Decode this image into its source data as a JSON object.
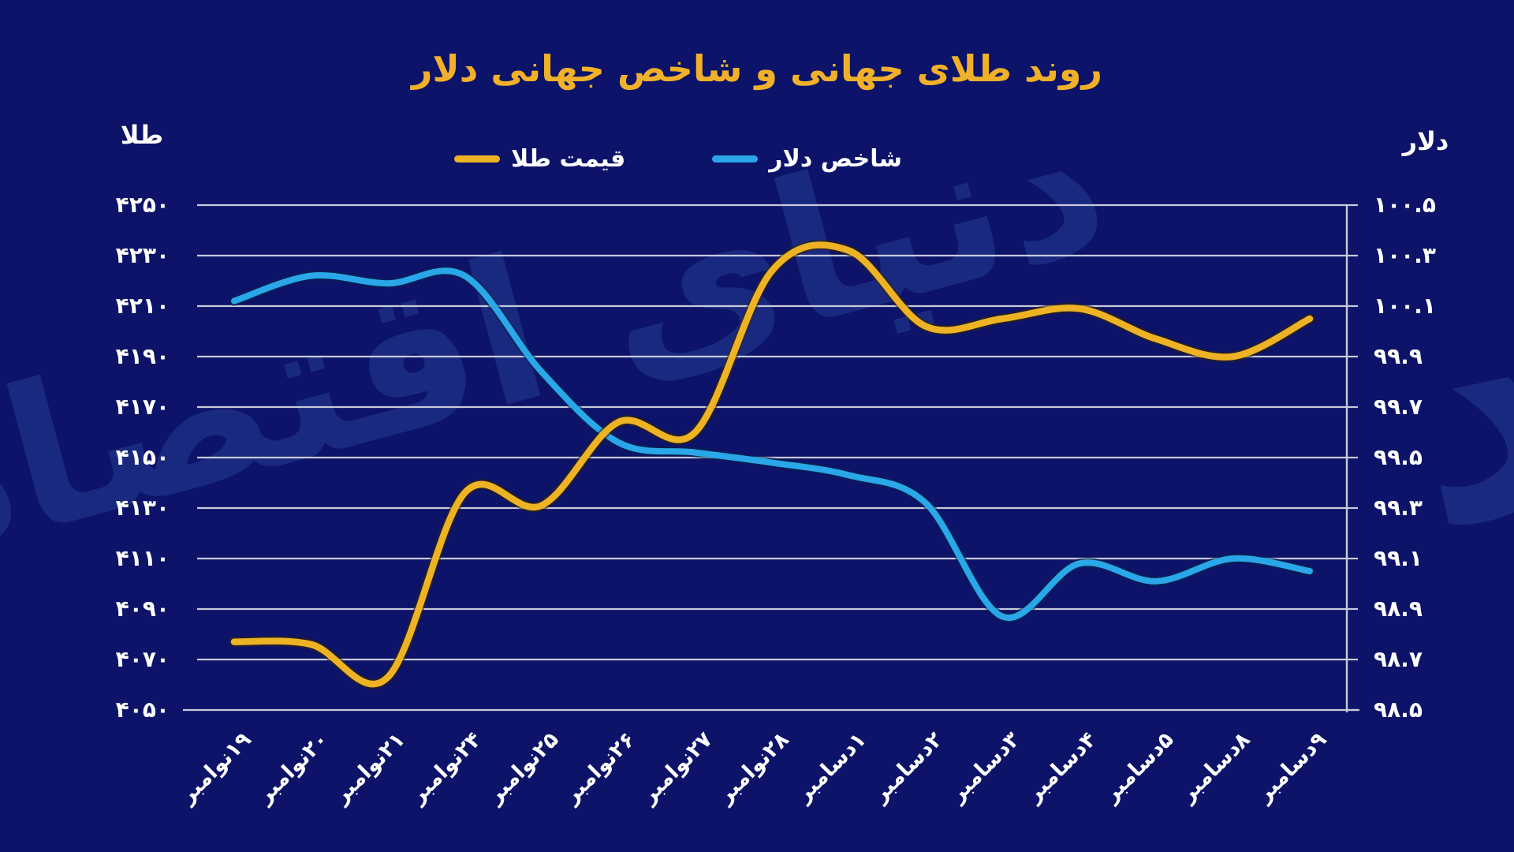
{
  "title": "روند طلای جهانی و شاخص جهانی دلار",
  "watermark": "دنیای اقتصاد",
  "colors": {
    "background": "#0c1368",
    "title": "#f1b02a",
    "gridline": "#c7cada",
    "gold_line": "#eeb324",
    "dollar_line": "#2aa7e8",
    "text": "#ffffff"
  },
  "legend": [
    {
      "label": "قیمت طلا",
      "color": "#eeb324"
    },
    {
      "label": "شاخص دلار",
      "color": "#2aa7e8"
    }
  ],
  "chart_data": {
    "type": "line",
    "title": "روند طلای جهانی و شاخص جهانی دلار",
    "grid": true,
    "legend_position": "top",
    "categories": [
      "۱۹نوامبر",
      "۲۰نوامبر",
      "۲۱نوامبر",
      "۲۴نوامبر",
      "۲۵نوامبر",
      "۲۶نوامبر",
      "۲۷نوامبر",
      "۲۸نوامبر",
      "۱دسامبر",
      "۲دسامبر",
      "۳دسامبر",
      "۴دسامبر",
      "۵دسامبر",
      "۸دسامبر",
      "۹دسامبر"
    ],
    "series": [
      {
        "name": "قیمت طلا",
        "axis": "left",
        "color": "#eeb324",
        "values": [
          4077,
          4076,
          4063,
          4136,
          4131,
          4164,
          4160,
          4224,
          4232,
          4202,
          4205,
          4209,
          4197,
          4190,
          4205
        ]
      },
      {
        "name": "شاخص دلار",
        "axis": "right",
        "color": "#2aa7e8",
        "values": [
          100.12,
          100.22,
          100.19,
          100.22,
          99.84,
          99.56,
          99.52,
          99.48,
          99.43,
          99.32,
          98.87,
          99.08,
          99.01,
          99.1,
          99.05
        ]
      }
    ],
    "left_axis": {
      "title": "طلا",
      "ylim": [
        4050,
        4250
      ],
      "ticks": [
        4250,
        4230,
        4210,
        4190,
        4170,
        4150,
        4130,
        4110,
        4090,
        4070,
        4050
      ],
      "tick_labels": [
        "۴۲۵۰",
        "۴۲۳۰",
        "۴۲۱۰",
        "۴۱۹۰",
        "۴۱۷۰",
        "۴۱۵۰",
        "۴۱۳۰",
        "۴۱۱۰",
        "۴۰۹۰",
        "۴۰۷۰",
        "۴۰۵۰"
      ]
    },
    "right_axis": {
      "title": "دلار",
      "ylim": [
        98.5,
        100.5
      ],
      "ticks": [
        100.5,
        100.3,
        100.1,
        99.9,
        99.7,
        99.5,
        99.3,
        99.1,
        98.9,
        98.7,
        98.5
      ],
      "tick_labels": [
        "۱۰۰.۵",
        "۱۰۰.۳",
        "۱۰۰.۱",
        "۹۹.۹",
        "۹۹.۷",
        "۹۹.۵",
        "۹۹.۳",
        "۹۹.۱",
        "۹۸.۹",
        "۹۸.۷",
        "۹۸.۵"
      ]
    }
  }
}
